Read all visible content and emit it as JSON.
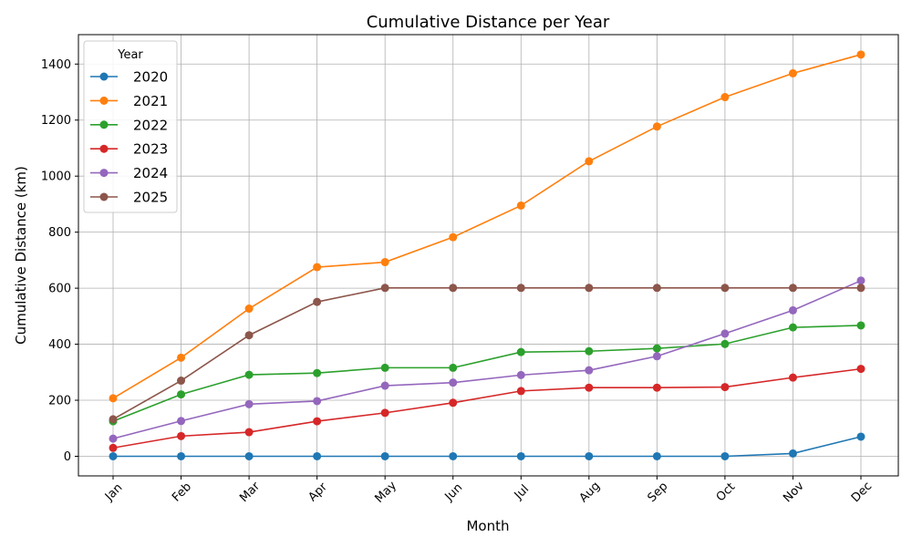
{
  "chart_data": {
    "type": "line",
    "title": "Cumulative Distance per Year",
    "xlabel": "Month",
    "ylabel": "Cumulative Distance (km)",
    "categories": [
      "Jan",
      "Feb",
      "Mar",
      "Apr",
      "May",
      "Jun",
      "Jul",
      "Aug",
      "Sep",
      "Oct",
      "Nov",
      "Dec"
    ],
    "ylim": [
      -70,
      1505
    ],
    "yticks": [
      0,
      200,
      400,
      600,
      800,
      1000,
      1200,
      1400
    ],
    "grid": true,
    "markers": true,
    "legend": {
      "title": "Year",
      "placement": "top-left"
    },
    "series": [
      {
        "name": "2020",
        "color": "#1f77b4",
        "values": [
          0,
          0,
          0,
          0,
          0,
          0,
          0,
          0,
          0,
          0,
          10,
          70
        ]
      },
      {
        "name": "2021",
        "color": "#ff7f0e",
        "values": [
          207,
          352,
          527,
          675,
          693,
          782,
          895,
          1053,
          1177,
          1282,
          1367,
          1434
        ]
      },
      {
        "name": "2022",
        "color": "#2ca02c",
        "values": [
          125,
          221,
          291,
          297,
          316,
          316,
          372,
          375,
          385,
          401,
          460,
          467
        ]
      },
      {
        "name": "2023",
        "color": "#d62728",
        "values": [
          30,
          72,
          86,
          125,
          155,
          191,
          233,
          245,
          245,
          247,
          281,
          312
        ]
      },
      {
        "name": "2024",
        "color": "#9467bd",
        "values": [
          63,
          126,
          186,
          197,
          252,
          263,
          290,
          307,
          357,
          438,
          521,
          627
        ]
      },
      {
        "name": "2025",
        "color": "#8c564b",
        "values": [
          132,
          270,
          432,
          551,
          601,
          601,
          601,
          601,
          601,
          601,
          601,
          601
        ]
      }
    ]
  }
}
